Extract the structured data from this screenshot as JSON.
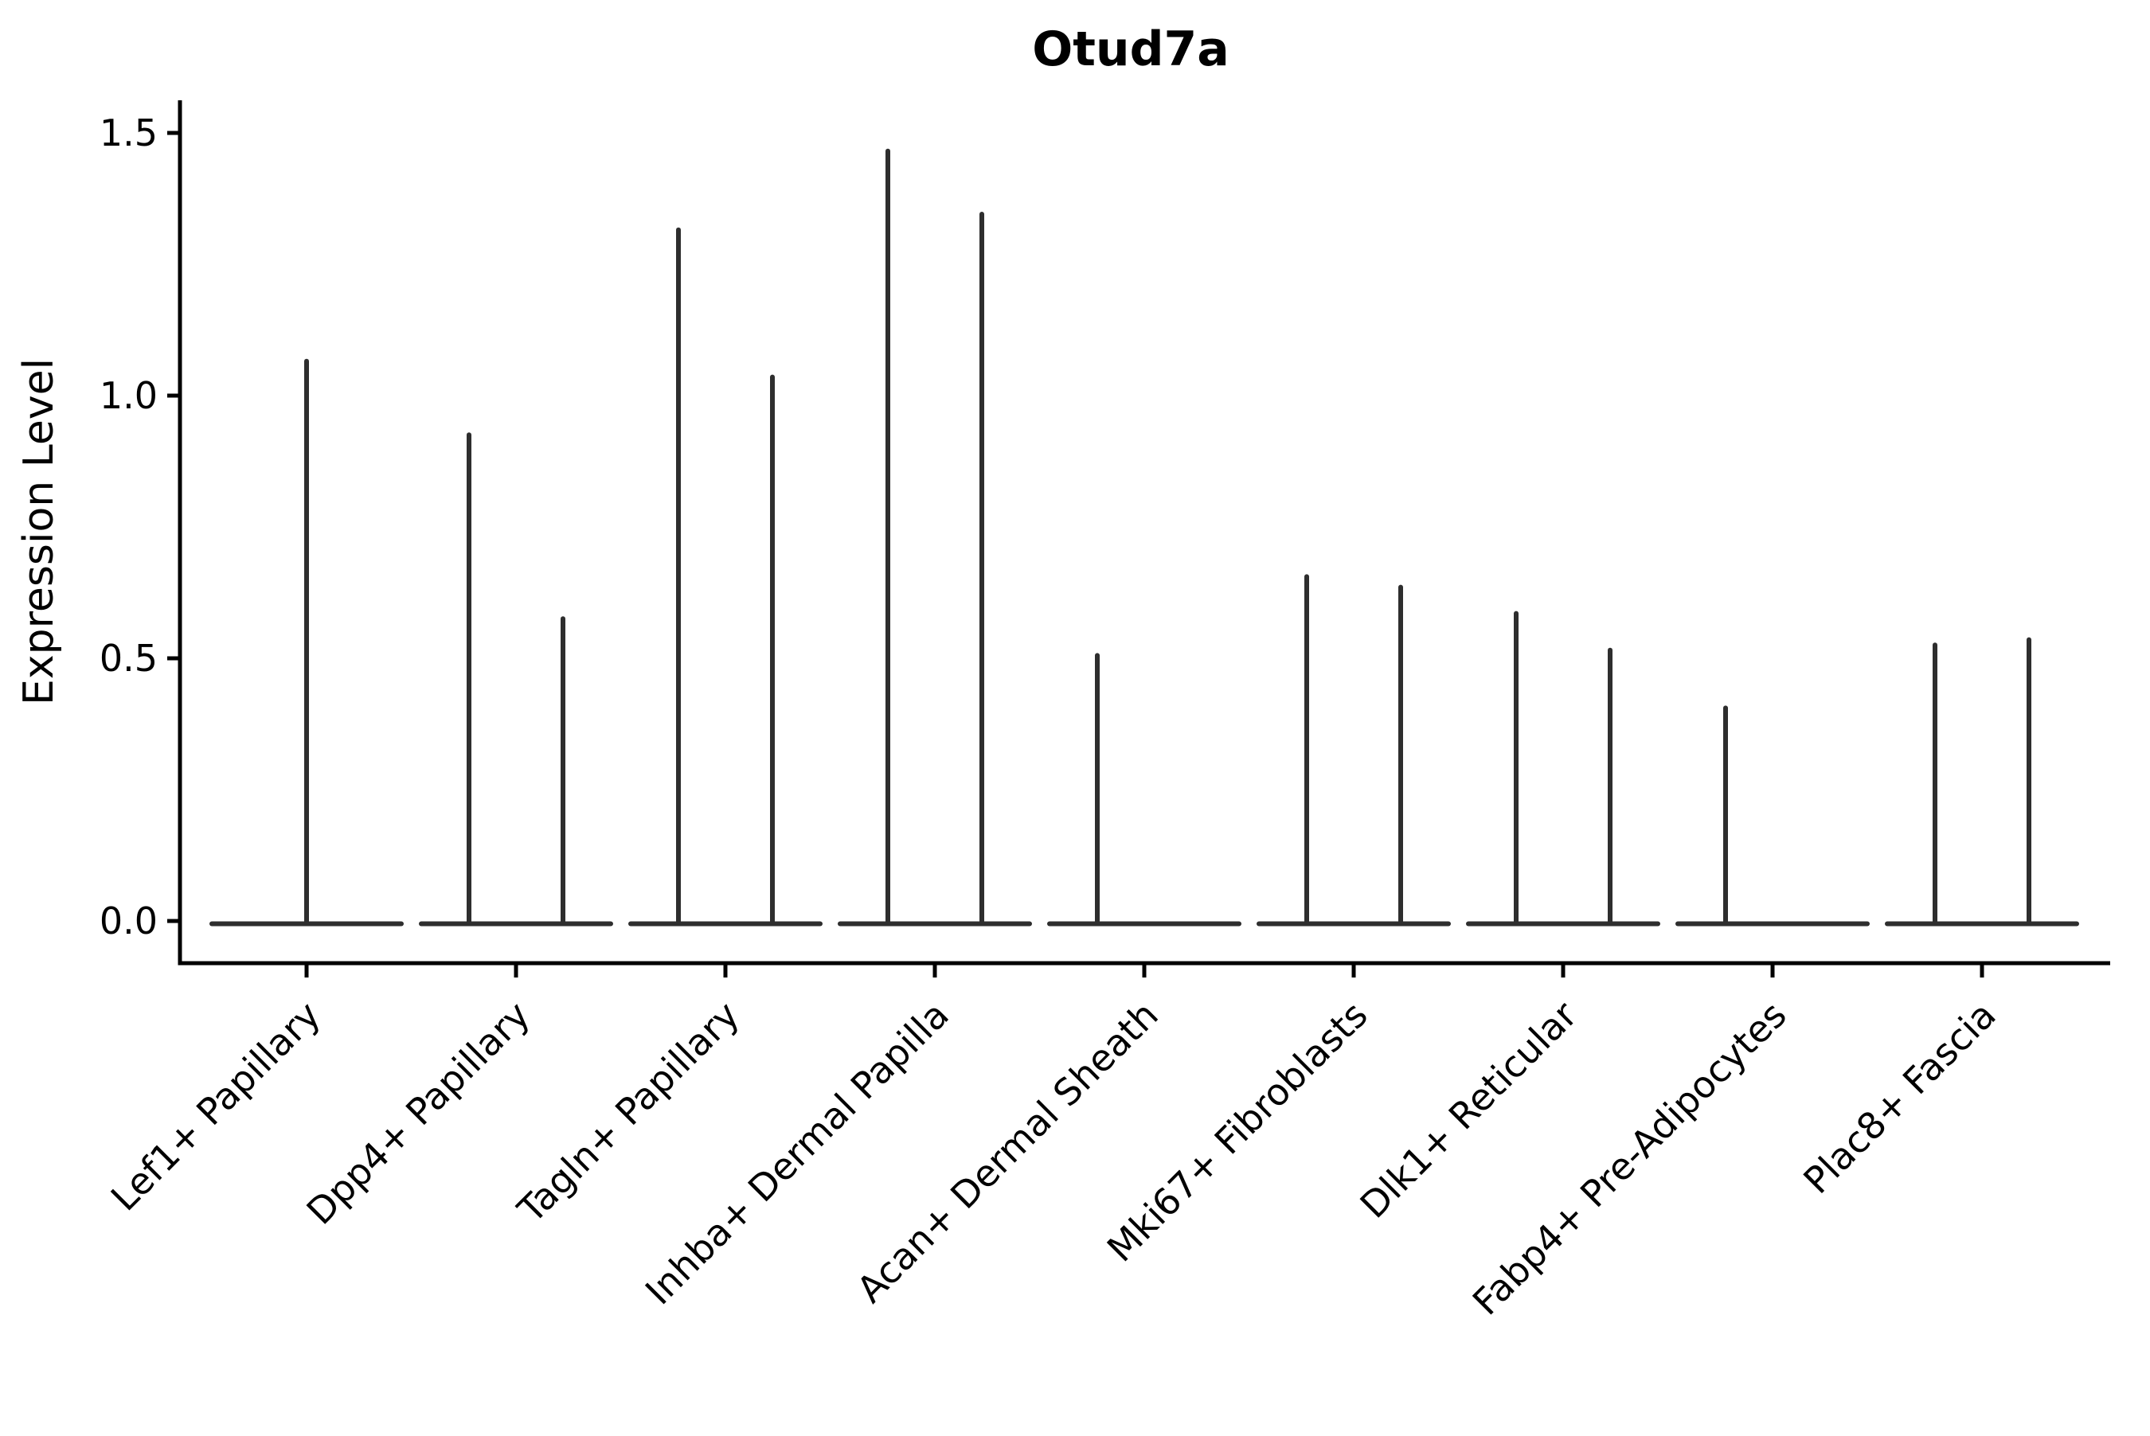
{
  "chart_data": {
    "type": "violin",
    "title": "Otud7a",
    "ylabel": "Expression Level",
    "xlabel": "",
    "ytick_labels": [
      "0.0",
      "0.5",
      "1.0",
      "1.5"
    ],
    "ylim": [
      0.0,
      1.57
    ],
    "grid": false,
    "legend": "none",
    "x_labels_rotation_deg": 45,
    "categories": [
      "Lef1+ Papillary",
      "Dpp4+ Papillary",
      "Tagln+ Papillary",
      "Inhba+ Dermal Papilla",
      "Acan+ Dermal Sheath",
      "Mki67+ Fibroblasts",
      "Dlk1+ Reticular",
      "Fabp4+ Pre-Adipocytes",
      "Plac8+ Fascia"
    ],
    "violins": [
      {
        "category": "Lef1+ Papillary",
        "spikes": [
          {
            "offset": "center",
            "max": 1.07
          }
        ]
      },
      {
        "category": "Dpp4+ Papillary",
        "spikes": [
          {
            "offset": "left",
            "max": 0.93
          },
          {
            "offset": "right",
            "max": 0.58
          }
        ]
      },
      {
        "category": "Tagln+ Papillary",
        "spikes": [
          {
            "offset": "left",
            "max": 1.32
          },
          {
            "offset": "right",
            "max": 1.04
          }
        ]
      },
      {
        "category": "Inhba+ Dermal Papilla",
        "spikes": [
          {
            "offset": "left",
            "max": 1.47
          },
          {
            "offset": "right",
            "max": 1.35
          }
        ]
      },
      {
        "category": "Acan+ Dermal Sheath",
        "spikes": [
          {
            "offset": "left",
            "max": 0.51
          },
          {
            "offset": "right",
            "max": 0.0
          }
        ]
      },
      {
        "category": "Mki67+ Fibroblasts",
        "spikes": [
          {
            "offset": "left",
            "max": 0.66
          },
          {
            "offset": "right",
            "max": 0.64
          }
        ]
      },
      {
        "category": "Dlk1+ Reticular",
        "spikes": [
          {
            "offset": "left",
            "max": 0.59
          },
          {
            "offset": "right",
            "max": 0.52
          }
        ]
      },
      {
        "category": "Fabp4+ Pre-Adipocytes",
        "spikes": [
          {
            "offset": "left",
            "max": 0.41
          },
          {
            "offset": "right",
            "max": 0.0
          }
        ]
      },
      {
        "category": "Plac8+ Fascia",
        "spikes": [
          {
            "offset": "left",
            "max": 0.53
          },
          {
            "offset": "right",
            "max": 0.54
          }
        ]
      }
    ],
    "colors": {
      "violin": "#2e2e2e",
      "axis": "#000000",
      "background": "#ffffff"
    }
  }
}
